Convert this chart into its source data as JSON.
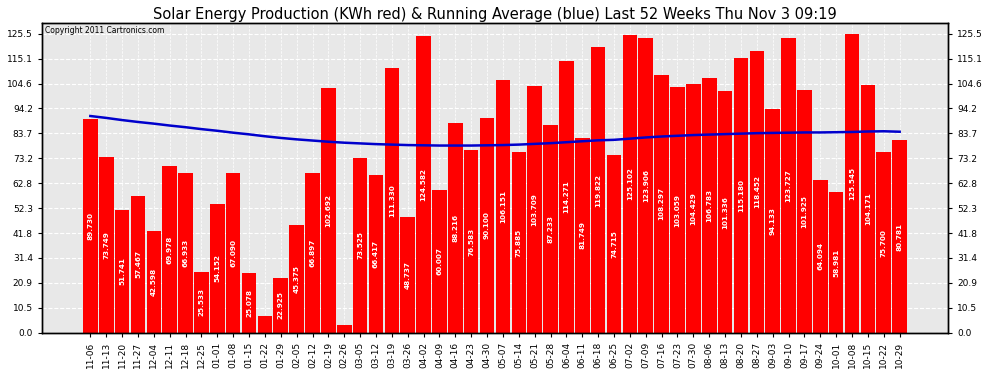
{
  "title": "Solar Energy Production (KWh red) & Running Average (blue) Last 52 Weeks Thu Nov 3 09:19",
  "copyright": "Copyright 2011 Cartronics.com",
  "bar_color": "#ff0000",
  "line_color": "#0000cc",
  "bg_color": "#ffffff",
  "plot_bg_color": "#e8e8e8",
  "grid_color": "#ffffff",
  "bar_edge_color": "#cc0000",
  "categories": [
    "11-06",
    "11-13",
    "11-20",
    "11-27",
    "12-04",
    "12-11",
    "12-18",
    "12-25",
    "01-01",
    "01-08",
    "01-15",
    "01-22",
    "01-29",
    "02-05",
    "02-12",
    "02-19",
    "02-26",
    "03-05",
    "03-12",
    "03-19",
    "03-26",
    "04-02",
    "04-09",
    "04-16",
    "04-23",
    "04-30",
    "05-07",
    "05-14",
    "05-21",
    "05-28",
    "06-04",
    "06-11",
    "06-18",
    "06-25",
    "07-02",
    "07-09",
    "07-16",
    "07-23",
    "07-30",
    "08-06",
    "08-13",
    "08-20",
    "08-27",
    "09-03",
    "09-10",
    "09-17",
    "09-24",
    "10-01",
    "10-08",
    "10-15",
    "10-22",
    "10-29"
  ],
  "values": [
    89.73,
    73.749,
    51.741,
    57.467,
    42.598,
    69.978,
    66.933,
    25.533,
    54.152,
    67.09,
    25.078,
    7.009,
    22.925,
    45.375,
    66.897,
    102.692,
    3.152,
    73.525,
    66.417,
    111.33,
    48.737,
    124.582,
    60.007,
    88.216,
    76.583,
    90.1,
    106.151,
    75.885,
    103.709,
    87.233,
    114.271,
    81.749,
    119.822,
    74.715,
    125.102,
    123.906,
    108.297,
    103.059,
    104.429,
    106.783,
    101.336,
    115.18,
    118.452,
    94.133,
    123.727,
    101.925,
    64.094,
    58.981,
    125.545,
    104.171,
    75.7,
    80.781
  ],
  "running_avg": [
    91.0,
    90.2,
    89.3,
    88.5,
    87.8,
    87.0,
    86.3,
    85.5,
    84.8,
    84.0,
    83.3,
    82.5,
    81.8,
    81.2,
    80.7,
    80.2,
    79.8,
    79.5,
    79.2,
    79.0,
    78.8,
    78.7,
    78.6,
    78.6,
    78.6,
    78.7,
    78.8,
    79.0,
    79.3,
    79.6,
    80.0,
    80.4,
    80.8,
    81.0,
    81.5,
    82.0,
    82.4,
    82.7,
    83.0,
    83.2,
    83.4,
    83.6,
    83.8,
    83.9,
    84.0,
    84.1,
    84.1,
    84.2,
    84.3,
    84.5,
    84.6,
    84.4
  ],
  "ylim": [
    0,
    130
  ],
  "yticks": [
    0.0,
    10.5,
    20.9,
    31.4,
    41.8,
    52.3,
    62.8,
    73.2,
    83.7,
    94.2,
    104.6,
    115.1,
    125.5
  ],
  "title_fontsize": 10.5,
  "label_fontsize": 5.2,
  "tick_fontsize": 6.5
}
